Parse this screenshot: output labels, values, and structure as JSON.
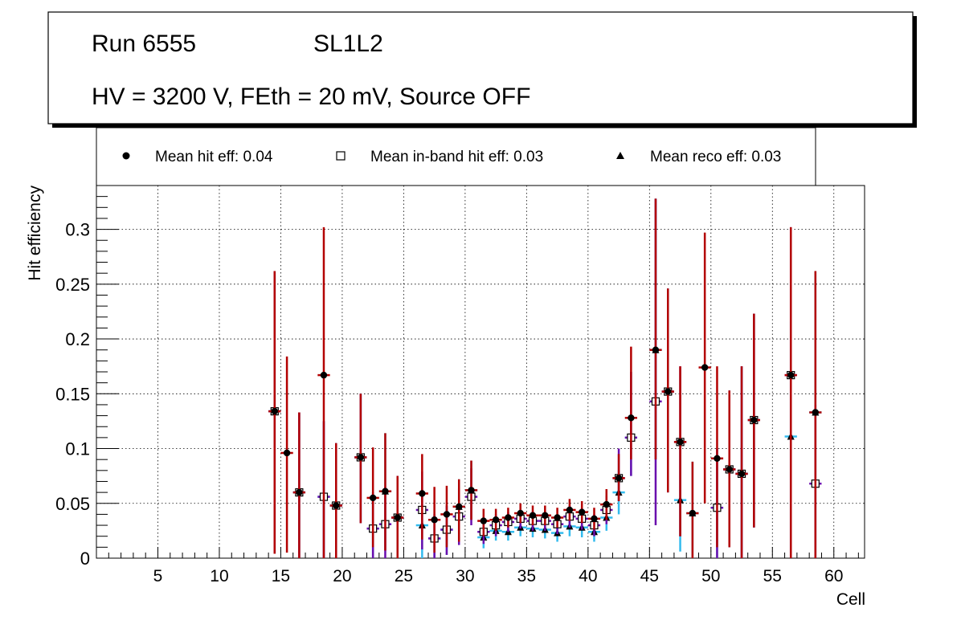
{
  "header": {
    "run": "Run 6555",
    "layer": "SL1L2",
    "conditions": "HV = 3200 V, FEth = 20 mV, Source OFF"
  },
  "legend": [
    {
      "key": "hit",
      "label": "Mean hit  eff: 0.04",
      "marker": "filled-circle"
    },
    {
      "key": "inband",
      "label": "Mean in-band hit eff: 0.03",
      "marker": "open-square"
    },
    {
      "key": "reco",
      "label": "Mean reco eff: 0.03",
      "marker": "filled-triangle"
    }
  ],
  "chart_data": {
    "type": "scatter",
    "title": "Run 6555 SL1L2 HV = 3200 V, FEth = 20 mV, Source OFF",
    "xlabel": "Cell",
    "ylabel": "Hit efficiency",
    "xlim": [
      0,
      62.5
    ],
    "ylim": [
      0,
      0.34
    ],
    "xticks": [
      5,
      10,
      15,
      20,
      25,
      30,
      35,
      40,
      45,
      50,
      55,
      60
    ],
    "yticks": [
      0,
      0.05,
      0.1,
      0.15,
      0.2,
      0.25,
      0.3
    ],
    "ytick_labels": [
      "0",
      "0.05",
      "0.1",
      "0.15",
      "0.2",
      "0.25",
      "0.3"
    ],
    "grid": true,
    "colors": {
      "hit": "#b30000",
      "inband": "#6a0dad",
      "reco": "#33bbee"
    },
    "series": [
      {
        "name": "Mean hit  eff: 0.04",
        "key": "hit",
        "points": [
          {
            "x": 14.5,
            "y": 0.134,
            "lo": 0.004,
            "hi": 0.262
          },
          {
            "x": 15.5,
            "y": 0.096,
            "lo": 0.005,
            "hi": 0.184
          },
          {
            "x": 16.5,
            "y": 0.06,
            "lo": 0.0,
            "hi": 0.133
          },
          {
            "x": 18.5,
            "y": 0.167,
            "lo": 0.0,
            "hi": 0.302
          },
          {
            "x": 19.5,
            "y": 0.048,
            "lo": 0.0,
            "hi": 0.105
          },
          {
            "x": 21.5,
            "y": 0.092,
            "lo": 0.032,
            "hi": 0.15
          },
          {
            "x": 22.5,
            "y": 0.055,
            "lo": 0.01,
            "hi": 0.101
          },
          {
            "x": 23.5,
            "y": 0.061,
            "lo": 0.007,
            "hi": 0.114
          },
          {
            "x": 24.5,
            "y": 0.037,
            "lo": 0.0,
            "hi": 0.075
          },
          {
            "x": 26.5,
            "y": 0.059,
            "lo": 0.017,
            "hi": 0.095
          },
          {
            "x": 27.5,
            "y": 0.035,
            "lo": 0.005,
            "hi": 0.065
          },
          {
            "x": 28.5,
            "y": 0.04,
            "lo": 0.01,
            "hi": 0.066
          },
          {
            "x": 29.5,
            "y": 0.047,
            "lo": 0.015,
            "hi": 0.072
          },
          {
            "x": 30.5,
            "y": 0.062,
            "lo": 0.035,
            "hi": 0.089
          },
          {
            "x": 31.5,
            "y": 0.034,
            "lo": 0.02,
            "hi": 0.045
          },
          {
            "x": 32.5,
            "y": 0.035,
            "lo": 0.025,
            "hi": 0.045
          },
          {
            "x": 33.5,
            "y": 0.037,
            "lo": 0.028,
            "hi": 0.046
          },
          {
            "x": 34.5,
            "y": 0.041,
            "lo": 0.032,
            "hi": 0.05
          },
          {
            "x": 35.5,
            "y": 0.039,
            "lo": 0.03,
            "hi": 0.048
          },
          {
            "x": 36.5,
            "y": 0.039,
            "lo": 0.03,
            "hi": 0.048
          },
          {
            "x": 37.5,
            "y": 0.037,
            "lo": 0.028,
            "hi": 0.046
          },
          {
            "x": 38.5,
            "y": 0.044,
            "lo": 0.034,
            "hi": 0.054
          },
          {
            "x": 39.5,
            "y": 0.042,
            "lo": 0.032,
            "hi": 0.052
          },
          {
            "x": 40.5,
            "y": 0.036,
            "lo": 0.026,
            "hi": 0.046
          },
          {
            "x": 41.5,
            "y": 0.049,
            "lo": 0.035,
            "hi": 0.063
          },
          {
            "x": 42.5,
            "y": 0.073,
            "lo": 0.052,
            "hi": 0.095
          },
          {
            "x": 43.5,
            "y": 0.128,
            "lo": 0.09,
            "hi": 0.193
          },
          {
            "x": 45.5,
            "y": 0.19,
            "lo": 0.09,
            "hi": 0.328
          },
          {
            "x": 46.5,
            "y": 0.152,
            "lo": 0.06,
            "hi": 0.246
          },
          {
            "x": 47.5,
            "y": 0.106,
            "lo": 0.02,
            "hi": 0.175
          },
          {
            "x": 48.5,
            "y": 0.041,
            "lo": 0.0,
            "hi": 0.088
          },
          {
            "x": 49.5,
            "y": 0.174,
            "lo": 0.05,
            "hi": 0.297
          },
          {
            "x": 50.5,
            "y": 0.091,
            "lo": 0.01,
            "hi": 0.175
          },
          {
            "x": 51.5,
            "y": 0.081,
            "lo": 0.01,
            "hi": 0.153
          },
          {
            "x": 52.5,
            "y": 0.077,
            "lo": 0.0,
            "hi": 0.175
          },
          {
            "x": 53.5,
            "y": 0.126,
            "lo": 0.028,
            "hi": 0.223
          },
          {
            "x": 56.5,
            "y": 0.167,
            "lo": 0.0,
            "hi": 0.302
          },
          {
            "x": 58.5,
            "y": 0.133,
            "lo": 0.0,
            "hi": 0.262
          }
        ]
      },
      {
        "name": "Mean in-band hit eff: 0.03",
        "key": "inband",
        "points": [
          {
            "x": 14.5,
            "y": 0.134,
            "lo": 0.004,
            "hi": 0.262
          },
          {
            "x": 16.5,
            "y": 0.06,
            "lo": 0.0,
            "hi": 0.133
          },
          {
            "x": 18.5,
            "y": 0.056,
            "lo": 0.0,
            "hi": 0.125
          },
          {
            "x": 19.5,
            "y": 0.048,
            "lo": 0.0,
            "hi": 0.105
          },
          {
            "x": 21.5,
            "y": 0.092,
            "lo": 0.032,
            "hi": 0.15
          },
          {
            "x": 22.5,
            "y": 0.027,
            "lo": 0.0,
            "hi": 0.06
          },
          {
            "x": 23.5,
            "y": 0.031,
            "lo": 0.0,
            "hi": 0.065
          },
          {
            "x": 24.5,
            "y": 0.037,
            "lo": 0.0,
            "hi": 0.075
          },
          {
            "x": 26.5,
            "y": 0.044,
            "lo": 0.008,
            "hi": 0.079
          },
          {
            "x": 27.5,
            "y": 0.018,
            "lo": 0.0,
            "hi": 0.04
          },
          {
            "x": 28.5,
            "y": 0.026,
            "lo": 0.003,
            "hi": 0.048
          },
          {
            "x": 29.5,
            "y": 0.038,
            "lo": 0.012,
            "hi": 0.064
          },
          {
            "x": 30.5,
            "y": 0.056,
            "lo": 0.03,
            "hi": 0.082
          },
          {
            "x": 31.5,
            "y": 0.024,
            "lo": 0.013,
            "hi": 0.035
          },
          {
            "x": 32.5,
            "y": 0.03,
            "lo": 0.02,
            "hi": 0.04
          },
          {
            "x": 33.5,
            "y": 0.033,
            "lo": 0.024,
            "hi": 0.042
          },
          {
            "x": 34.5,
            "y": 0.036,
            "lo": 0.027,
            "hi": 0.045
          },
          {
            "x": 35.5,
            "y": 0.034,
            "lo": 0.025,
            "hi": 0.043
          },
          {
            "x": 36.5,
            "y": 0.034,
            "lo": 0.025,
            "hi": 0.043
          },
          {
            "x": 37.5,
            "y": 0.031,
            "lo": 0.022,
            "hi": 0.04
          },
          {
            "x": 38.5,
            "y": 0.038,
            "lo": 0.028,
            "hi": 0.048
          },
          {
            "x": 39.5,
            "y": 0.036,
            "lo": 0.026,
            "hi": 0.046
          },
          {
            "x": 40.5,
            "y": 0.03,
            "lo": 0.02,
            "hi": 0.04
          },
          {
            "x": 41.5,
            "y": 0.044,
            "lo": 0.031,
            "hi": 0.057
          },
          {
            "x": 42.5,
            "y": 0.073,
            "lo": 0.052,
            "hi": 0.1
          },
          {
            "x": 43.5,
            "y": 0.11,
            "lo": 0.075,
            "hi": 0.17
          },
          {
            "x": 45.5,
            "y": 0.143,
            "lo": 0.03,
            "hi": 0.328
          },
          {
            "x": 46.5,
            "y": 0.152,
            "lo": 0.06,
            "hi": 0.246
          },
          {
            "x": 47.5,
            "y": 0.106,
            "lo": 0.02,
            "hi": 0.175
          },
          {
            "x": 50.5,
            "y": 0.046,
            "lo": 0.0,
            "hi": 0.1
          },
          {
            "x": 51.5,
            "y": 0.081,
            "lo": 0.01,
            "hi": 0.153
          },
          {
            "x": 52.5,
            "y": 0.077,
            "lo": 0.0,
            "hi": 0.175
          },
          {
            "x": 53.5,
            "y": 0.126,
            "lo": 0.028,
            "hi": 0.223
          },
          {
            "x": 56.5,
            "y": 0.167,
            "lo": 0.0,
            "hi": 0.302
          },
          {
            "x": 58.5,
            "y": 0.068,
            "lo": 0.0,
            "hi": 0.14
          }
        ]
      },
      {
        "name": "Mean reco eff: 0.03",
        "key": "reco",
        "points": [
          {
            "x": 14.5,
            "y": 0.134,
            "lo": 0.004,
            "hi": 0.262
          },
          {
            "x": 16.5,
            "y": 0.06,
            "lo": 0.0,
            "hi": 0.133
          },
          {
            "x": 18.5,
            "y": 0.056,
            "lo": 0.0,
            "hi": 0.125
          },
          {
            "x": 19.5,
            "y": 0.048,
            "lo": 0.0,
            "hi": 0.105
          },
          {
            "x": 21.5,
            "y": 0.092,
            "lo": 0.032,
            "hi": 0.15
          },
          {
            "x": 22.5,
            "y": 0.027,
            "lo": 0.0,
            "hi": 0.06
          },
          {
            "x": 23.5,
            "y": 0.061,
            "lo": 0.007,
            "hi": 0.114
          },
          {
            "x": 24.5,
            "y": 0.037,
            "lo": 0.0,
            "hi": 0.075
          },
          {
            "x": 26.5,
            "y": 0.03,
            "lo": 0.0,
            "hi": 0.06
          },
          {
            "x": 27.5,
            "y": 0.018,
            "lo": 0.0,
            "hi": 0.04
          },
          {
            "x": 28.5,
            "y": 0.026,
            "lo": 0.003,
            "hi": 0.048
          },
          {
            "x": 29.5,
            "y": 0.047,
            "lo": 0.015,
            "hi": 0.072
          },
          {
            "x": 30.5,
            "y": 0.062,
            "lo": 0.035,
            "hi": 0.089
          },
          {
            "x": 31.5,
            "y": 0.019,
            "lo": 0.009,
            "hi": 0.029
          },
          {
            "x": 32.5,
            "y": 0.025,
            "lo": 0.016,
            "hi": 0.034
          },
          {
            "x": 33.5,
            "y": 0.024,
            "lo": 0.016,
            "hi": 0.032
          },
          {
            "x": 34.5,
            "y": 0.028,
            "lo": 0.02,
            "hi": 0.036
          },
          {
            "x": 35.5,
            "y": 0.027,
            "lo": 0.019,
            "hi": 0.035
          },
          {
            "x": 36.5,
            "y": 0.026,
            "lo": 0.018,
            "hi": 0.034
          },
          {
            "x": 37.5,
            "y": 0.023,
            "lo": 0.015,
            "hi": 0.031
          },
          {
            "x": 38.5,
            "y": 0.029,
            "lo": 0.02,
            "hi": 0.038
          },
          {
            "x": 39.5,
            "y": 0.028,
            "lo": 0.019,
            "hi": 0.037
          },
          {
            "x": 40.5,
            "y": 0.024,
            "lo": 0.015,
            "hi": 0.033
          },
          {
            "x": 41.5,
            "y": 0.037,
            "lo": 0.025,
            "hi": 0.049
          },
          {
            "x": 42.5,
            "y": 0.06,
            "lo": 0.04,
            "hi": 0.08
          },
          {
            "x": 43.5,
            "y": 0.11,
            "lo": 0.075,
            "hi": 0.17
          },
          {
            "x": 45.5,
            "y": 0.19,
            "lo": 0.09,
            "hi": 0.328
          },
          {
            "x": 46.5,
            "y": 0.152,
            "lo": 0.06,
            "hi": 0.246
          },
          {
            "x": 47.5,
            "y": 0.053,
            "lo": 0.006,
            "hi": 0.1
          },
          {
            "x": 48.5,
            "y": 0.041,
            "lo": 0.0,
            "hi": 0.088
          },
          {
            "x": 50.5,
            "y": 0.046,
            "lo": 0.0,
            "hi": 0.1
          },
          {
            "x": 51.5,
            "y": 0.081,
            "lo": 0.01,
            "hi": 0.153
          },
          {
            "x": 52.5,
            "y": 0.077,
            "lo": 0.0,
            "hi": 0.175
          },
          {
            "x": 53.5,
            "y": 0.126,
            "lo": 0.028,
            "hi": 0.223
          },
          {
            "x": 56.5,
            "y": 0.111,
            "lo": 0.005,
            "hi": 0.216
          },
          {
            "x": 58.5,
            "y": 0.133,
            "lo": 0.0,
            "hi": 0.262
          }
        ]
      }
    ]
  }
}
